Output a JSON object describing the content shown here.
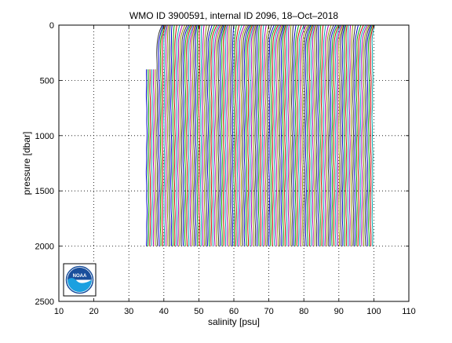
{
  "chart_data": {
    "type": "line",
    "title": "WMO ID 3900591, internal ID 2096, 18–Oct–2018",
    "xlabel": "salinity [psu]",
    "ylabel": "pressure [dbar]",
    "xlim": [
      10,
      110
    ],
    "ylim": [
      2500,
      0
    ],
    "y_reversed": true,
    "x_ticks": [
      10,
      20,
      30,
      40,
      50,
      60,
      70,
      80,
      90,
      100,
      110
    ],
    "y_ticks": [
      0,
      500,
      1000,
      1500,
      2000,
      2500
    ],
    "x_tick_labels": [
      "10",
      "20",
      "30",
      "40",
      "50",
      "60",
      "70",
      "80",
      "90",
      "100",
      "110"
    ],
    "y_tick_labels": [
      "0",
      "500",
      "1000",
      "1500",
      "2000",
      "2500"
    ],
    "grid": "dotted",
    "legend": "none",
    "series_description": "waterfall of salinity profiles, each offset by about 0.5 psu",
    "profile_count": 130,
    "profile_offset_step": 0.5,
    "first_profile_base_salinity": 35.1,
    "profile_pressure_range": [
      0,
      2000
    ],
    "surface_salinity_bump": 1.5,
    "colors": [
      "#0000cc",
      "#00a000",
      "#cc0000",
      "#00aaaa",
      "#aa00aa",
      "#999900",
      "#333333"
    ]
  },
  "logo": {
    "text": "NOAA",
    "colors": {
      "sky": "#1a4f9c",
      "wave": "#1ba0e0",
      "frame": "#000000"
    }
  }
}
